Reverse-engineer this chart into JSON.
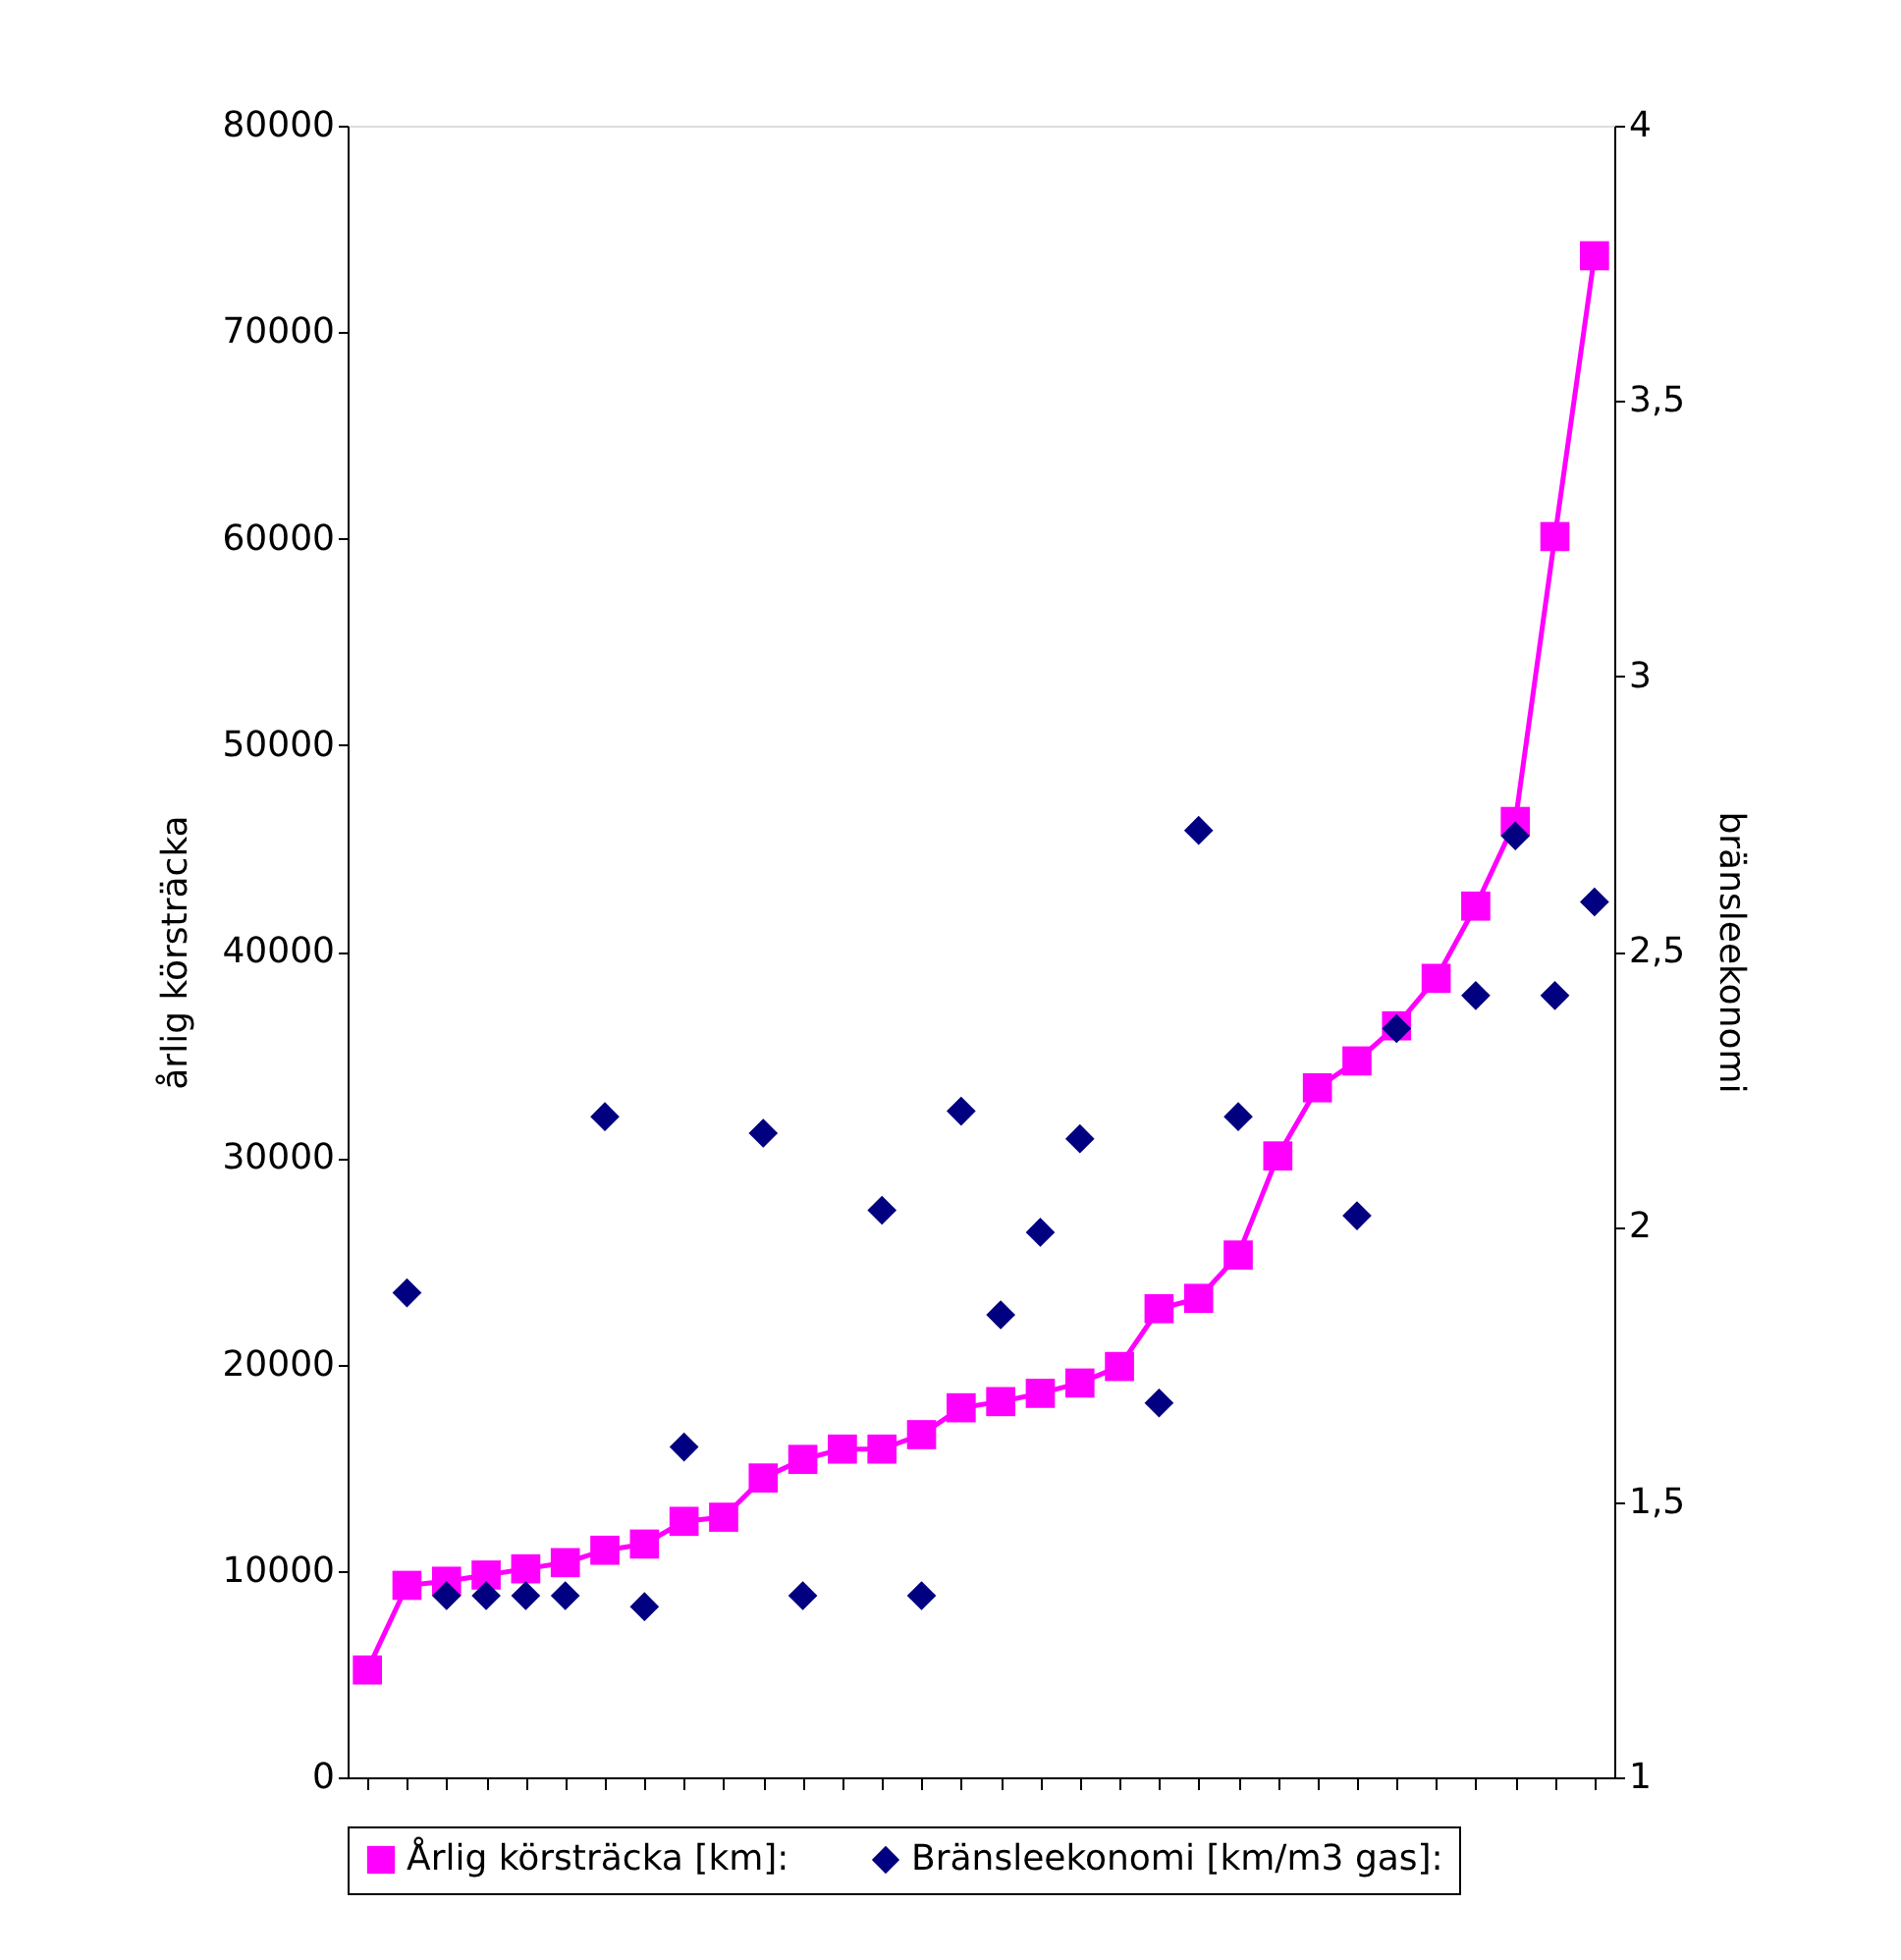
{
  "chart_data": {
    "type": "line",
    "ylabel": "årlig körsträcka",
    "y2label": "bränsleekonomi",
    "categories": [
      null,
      null,
      null,
      null,
      null,
      null,
      null,
      null,
      null,
      null,
      null,
      null,
      null,
      null,
      null,
      null,
      null,
      null,
      null,
      null,
      null,
      null,
      null,
      null,
      null,
      null,
      null,
      null,
      null,
      null,
      null,
      null
    ],
    "series": [
      {
        "name": "Årlig körsträcka [km]:",
        "marker": "square",
        "color": "#ff00ff",
        "values": [
          5200,
          9300,
          9500,
          9800,
          10100,
          10400,
          11000,
          11300,
          12400,
          12600,
          14500,
          15400,
          15900,
          15900,
          16600,
          17900,
          18200,
          18600,
          19100,
          19900,
          22700,
          23200,
          25300,
          30100,
          33400,
          34700,
          36400,
          38700,
          42200,
          46300,
          60100,
          73700
        ]
      },
      {
        "name": "Bränsleekonomi [km/m3 gas]:",
        "type": "scatter",
        "marker": "diamond",
        "axis": "y2",
        "color": "#000080",
        "values": [
          null,
          1.88,
          1.33,
          1.33,
          1.33,
          1.33,
          2.2,
          1.31,
          1.6,
          null,
          2.17,
          1.33,
          null,
          2.03,
          1.33,
          2.21,
          1.84,
          1.99,
          2.16,
          null,
          1.68,
          2.72,
          2.2,
          null,
          null,
          2.02,
          2.36,
          null,
          2.42,
          2.71,
          2.42,
          2.59
        ]
      }
    ],
    "ylim": [
      0,
      80000
    ],
    "yticks": [
      0,
      10000,
      20000,
      30000,
      40000,
      50000,
      60000,
      70000,
      80000
    ],
    "y2lim": [
      1,
      4
    ],
    "y2ticks": [
      1,
      {
        "value": 1.5,
        "label": "1,5"
      },
      2,
      {
        "value": 2.5,
        "label": "2,5"
      },
      3,
      {
        "value": 3.5,
        "label": "3,5"
      },
      4
    ],
    "tick_labels": "y",
    "grid": false,
    "legend": "bottom"
  }
}
